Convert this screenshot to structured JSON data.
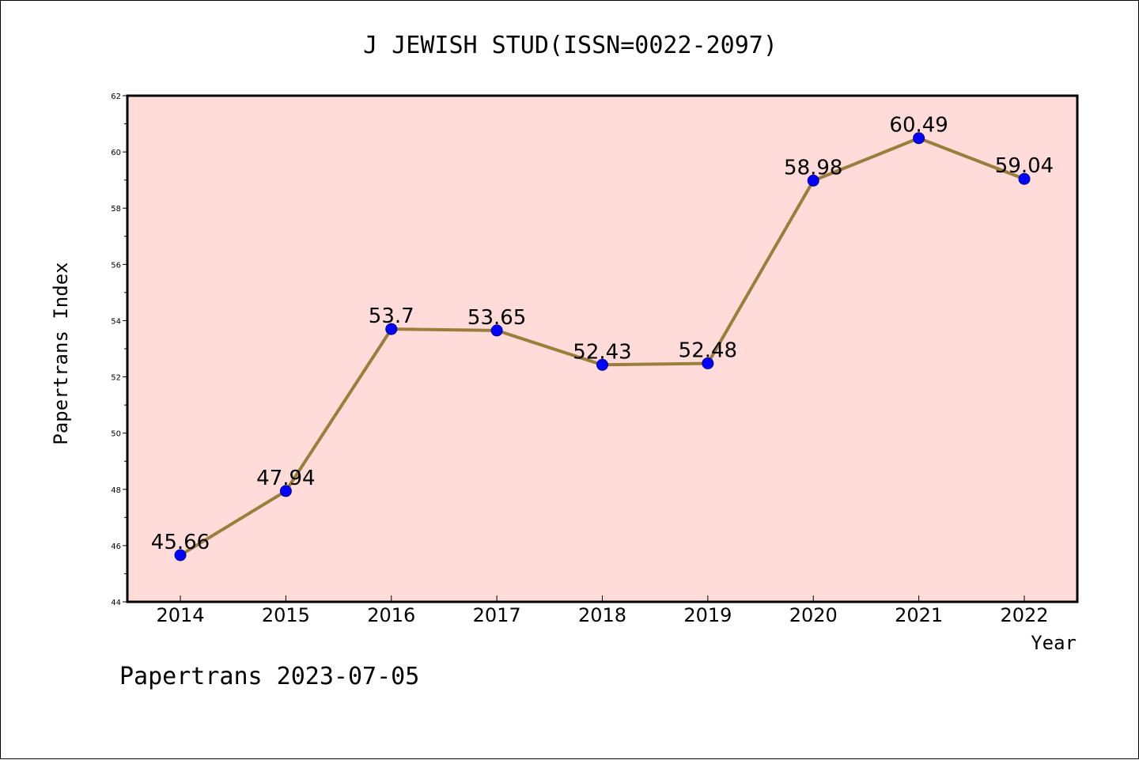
{
  "chart_data": {
    "type": "line",
    "title": "J JEWISH STUD(ISSN=0022-2097)",
    "xlabel": "Year",
    "ylabel": "Papertrans Index",
    "categories": [
      "2014",
      "2015",
      "2016",
      "2017",
      "2018",
      "2019",
      "2020",
      "2021",
      "2022"
    ],
    "series": [
      {
        "values": [
          45.66,
          47.94,
          53.7,
          53.65,
          52.43,
          52.48,
          58.98,
          60.49,
          59.04
        ],
        "labels": [
          "45.66",
          "47.94",
          "53.7",
          "53.65",
          "52.43",
          "52.48",
          "58.98",
          "60.49",
          "59.04"
        ]
      }
    ],
    "ylim": [
      44,
      62
    ],
    "yticks": [
      "44",
      "46",
      "48",
      "50",
      "52",
      "54",
      "56",
      "58",
      "60",
      "62"
    ],
    "grid": false,
    "line_color": "#9b7d3c",
    "marker_color": "#0000ff",
    "plot_background": "#ffdcd9"
  },
  "footer": {
    "text": "Papertrans 2023-07-05"
  }
}
